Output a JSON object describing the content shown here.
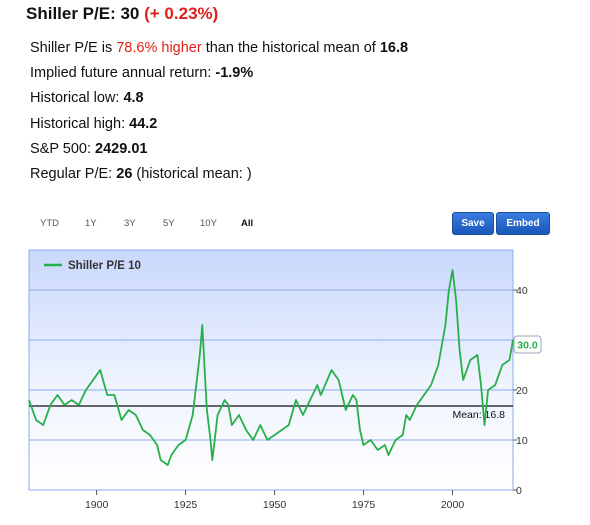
{
  "headline": {
    "label": "Shiller P/E: 30",
    "change": "(+ 0.23%)"
  },
  "stats": {
    "line1_prefix": "Shiller P/E is ",
    "line1_highlight": "78.6% higher",
    "line1_suffix": " than the historical mean of ",
    "line1_value": "16.8",
    "line2_label": "Implied future annual return: ",
    "line2_value": "-1.9%",
    "line3_label": "Historical low: ",
    "line3_value": "4.8",
    "line4_label": "Historical high: ",
    "line4_value": "44.2",
    "line5_label": "S&P 500: ",
    "line5_value": "2429.01",
    "line6_label": "Regular P/E: ",
    "line6_value": "26",
    "line6_suffix": " (historical mean: )"
  },
  "range_buttons": [
    "YTD",
    "1Y",
    "3Y",
    "5Y",
    "10Y",
    "All"
  ],
  "active_range": "All",
  "actions": {
    "save": "Save",
    "embed": "Embed"
  },
  "colors": {
    "line": "#27b04a",
    "accent_red": "#e0201b",
    "button_blue": "#2a6dd0",
    "band": "#8fa9ee"
  },
  "chart_data": {
    "type": "line",
    "series": [
      {
        "name": "Shiller P/E 10",
        "x": [
          1881,
          1883,
          1885,
          1887,
          1889,
          1891,
          1893,
          1895,
          1897,
          1899,
          1901,
          1903,
          1905,
          1907,
          1909,
          1911,
          1913,
          1915,
          1917,
          1918,
          1920,
          1921,
          1923,
          1925,
          1927,
          1929,
          1929.7,
          1930.5,
          1931,
          1932,
          1932.5,
          1933,
          1934,
          1936,
          1937,
          1938,
          1940,
          1942,
          1944,
          1946,
          1948,
          1950,
          1952,
          1954,
          1956,
          1958,
          1960,
          1962,
          1963,
          1966,
          1968,
          1970,
          1972,
          1973,
          1974,
          1975,
          1977,
          1979,
          1981,
          1982,
          1984,
          1986,
          1987,
          1988,
          1990,
          1992,
          1994,
          1996,
          1998,
          1999,
          2000,
          2001,
          2002,
          2003,
          2005,
          2007,
          2008,
          2009,
          2010,
          2012,
          2014,
          2016,
          2017
        ],
        "values": [
          18,
          14,
          13,
          17,
          19,
          17,
          18,
          17,
          20,
          22,
          24,
          19,
          19,
          14,
          16,
          15,
          12,
          11,
          9,
          6,
          5,
          7,
          9,
          10,
          15,
          27,
          33,
          22,
          16,
          10,
          6,
          9,
          15,
          18,
          17,
          13,
          15,
          12,
          10,
          13,
          10,
          11,
          12,
          13,
          18,
          15,
          18,
          21,
          19,
          24,
          22,
          16,
          19,
          18,
          12,
          9,
          10,
          8,
          9,
          7,
          10,
          11,
          15,
          14,
          17,
          19,
          21,
          25,
          33,
          40,
          44,
          38,
          28,
          22,
          26,
          27,
          21,
          13,
          20,
          21,
          25,
          26,
          30
        ]
      }
    ],
    "y_ticks": [
      0,
      10,
      20,
      30,
      40
    ],
    "x_ticks": [
      1900,
      1925,
      1950,
      1975,
      2000
    ],
    "ylim": [
      0,
      48
    ],
    "xlim": [
      1881,
      2017
    ],
    "mean_line": {
      "value": 16.8,
      "label": "Mean: 16.8"
    },
    "current_label": "30.0",
    "legend_position": "top-left",
    "grid": true
  }
}
